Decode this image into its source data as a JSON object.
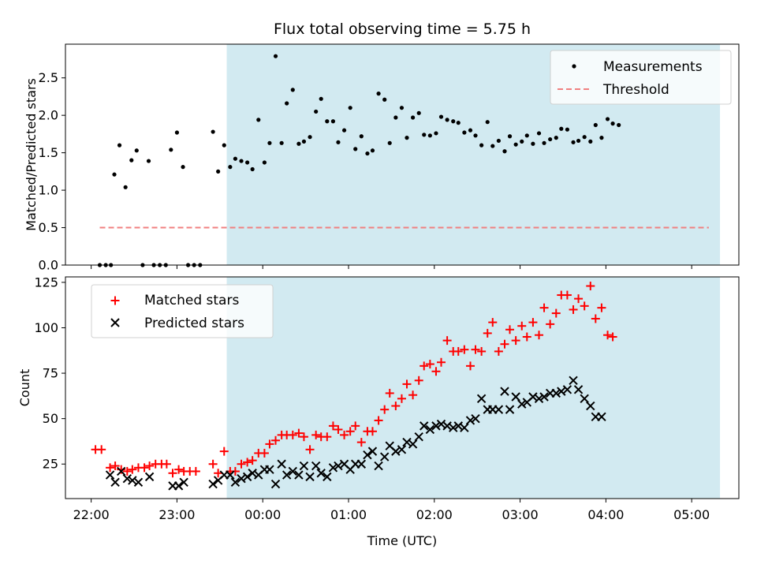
{
  "chart_data": [
    {
      "type": "scatter",
      "title": "Flux total observing time = 5.75 h",
      "xlabel": "",
      "ylabel": "Matched/Predicted stars",
      "ylim": [
        0,
        2.95
      ],
      "yticks": [
        "0.0",
        "0.5",
        "1.0",
        "1.5",
        "2.0",
        "2.5"
      ],
      "ytick_values": [
        0,
        0.5,
        1.0,
        1.5,
        2.0,
        2.5
      ],
      "shaded_span": [
        -0.42,
        5.33
      ],
      "legend": {
        "location": "top-right",
        "entries": [
          "Measurements",
          "Threshold"
        ]
      },
      "threshold": {
        "name": "Threshold",
        "value": 0.5,
        "x_range": [
          -1.9,
          5.2
        ],
        "color": "#f08080"
      },
      "series": [
        {
          "name": "Measurements",
          "color": "#000000",
          "points": [
            [
              -1.9,
              0.0
            ],
            [
              -1.83,
              0.0
            ],
            [
              -1.77,
              0.0
            ],
            [
              -1.73,
              1.21
            ],
            [
              -1.67,
              1.6
            ],
            [
              -1.6,
              1.04
            ],
            [
              -1.53,
              1.4
            ],
            [
              -1.47,
              1.53
            ],
            [
              -1.4,
              0.0
            ],
            [
              -1.33,
              1.39
            ],
            [
              -1.27,
              0.0
            ],
            [
              -1.2,
              0.0
            ],
            [
              -1.13,
              0.0
            ],
            [
              -1.07,
              1.54
            ],
            [
              -1.0,
              1.77
            ],
            [
              -0.93,
              1.31
            ],
            [
              -0.87,
              0.0
            ],
            [
              -0.8,
              0.0
            ],
            [
              -0.73,
              0.0
            ],
            [
              -0.58,
              1.78
            ],
            [
              -0.52,
              1.25
            ],
            [
              -0.45,
              1.6
            ],
            [
              -0.38,
              1.31
            ],
            [
              -0.32,
              1.42
            ],
            [
              -0.25,
              1.39
            ],
            [
              -0.18,
              1.37
            ],
            [
              -0.12,
              1.28
            ],
            [
              -0.05,
              1.94
            ],
            [
              0.02,
              1.37
            ],
            [
              0.08,
              1.63
            ],
            [
              0.15,
              2.79
            ],
            [
              0.22,
              1.63
            ],
            [
              0.28,
              2.16
            ],
            [
              0.35,
              2.34
            ],
            [
              0.42,
              1.62
            ],
            [
              0.48,
              1.65
            ],
            [
              0.55,
              1.71
            ],
            [
              0.62,
              2.05
            ],
            [
              0.68,
              2.22
            ],
            [
              0.75,
              1.92
            ],
            [
              0.82,
              1.92
            ],
            [
              0.88,
              1.64
            ],
            [
              0.95,
              1.8
            ],
            [
              1.02,
              2.1
            ],
            [
              1.08,
              1.55
            ],
            [
              1.15,
              1.72
            ],
            [
              1.22,
              1.49
            ],
            [
              1.28,
              1.53
            ],
            [
              1.35,
              2.29
            ],
            [
              1.42,
              2.21
            ],
            [
              1.48,
              1.63
            ],
            [
              1.55,
              1.97
            ],
            [
              1.62,
              2.1
            ],
            [
              1.68,
              1.7
            ],
            [
              1.75,
              1.97
            ],
            [
              1.82,
              2.03
            ],
            [
              1.88,
              1.74
            ],
            [
              1.95,
              1.73
            ],
            [
              2.02,
              1.76
            ],
            [
              2.08,
              1.98
            ],
            [
              2.15,
              1.94
            ],
            [
              2.22,
              1.92
            ],
            [
              2.28,
              1.9
            ],
            [
              2.35,
              1.77
            ],
            [
              2.42,
              1.8
            ],
            [
              2.48,
              1.73
            ],
            [
              2.55,
              1.6
            ],
            [
              2.62,
              1.91
            ],
            [
              2.68,
              1.59
            ],
            [
              2.75,
              1.66
            ],
            [
              2.82,
              1.52
            ],
            [
              2.88,
              1.72
            ],
            [
              2.95,
              1.61
            ],
            [
              3.02,
              1.65
            ],
            [
              3.08,
              1.73
            ],
            [
              3.15,
              1.62
            ],
            [
              3.22,
              1.76
            ],
            [
              3.28,
              1.63
            ],
            [
              3.35,
              1.68
            ],
            [
              3.42,
              1.7
            ],
            [
              3.48,
              1.82
            ],
            [
              3.55,
              1.81
            ],
            [
              3.62,
              1.64
            ],
            [
              3.68,
              1.66
            ],
            [
              3.75,
              1.71
            ],
            [
              3.82,
              1.65
            ],
            [
              3.88,
              1.87
            ],
            [
              3.95,
              1.7
            ],
            [
              4.02,
              1.95
            ],
            [
              4.08,
              1.89
            ],
            [
              4.15,
              1.87
            ]
          ]
        }
      ]
    },
    {
      "type": "scatter",
      "title": "",
      "xlabel": "Time (UTC)",
      "ylabel": "Count",
      "ylim": [
        6,
        128
      ],
      "yticks": [
        "25",
        "50",
        "75",
        "100",
        "125"
      ],
      "ytick_values": [
        25,
        50,
        75,
        100,
        125
      ],
      "xlim": [
        -2.3,
        5.55
      ],
      "xticks": [
        "22:00",
        "23:00",
        "00:00",
        "01:00",
        "02:00",
        "03:00",
        "04:00",
        "05:00"
      ],
      "xtick_values": [
        -2,
        -1,
        0,
        1,
        2,
        3,
        4,
        5
      ],
      "shaded_span": [
        -0.42,
        5.33
      ],
      "legend": {
        "location": "top-left",
        "entries": [
          "Matched stars",
          "Predicted stars"
        ]
      },
      "series": [
        {
          "name": "Matched stars",
          "marker": "+",
          "color": "#ff0000",
          "points": [
            [
              -1.95,
              33
            ],
            [
              -1.88,
              33
            ],
            [
              -1.78,
              23
            ],
            [
              -1.72,
              24
            ],
            [
              -1.65,
              22
            ],
            [
              -1.58,
              21
            ],
            [
              -1.52,
              22
            ],
            [
              -1.45,
              23
            ],
            [
              -1.38,
              23
            ],
            [
              -1.32,
              24
            ],
            [
              -1.25,
              25
            ],
            [
              -1.18,
              25
            ],
            [
              -1.12,
              25
            ],
            [
              -1.05,
              20
            ],
            [
              -0.98,
              22
            ],
            [
              -0.92,
              21
            ],
            [
              -0.85,
              21
            ],
            [
              -0.78,
              21
            ],
            [
              -0.58,
              25
            ],
            [
              -0.52,
              20
            ],
            [
              -0.45,
              32
            ],
            [
              -0.38,
              21
            ],
            [
              -0.32,
              21
            ],
            [
              -0.25,
              25
            ],
            [
              -0.18,
              26
            ],
            [
              -0.12,
              27
            ],
            [
              -0.05,
              31
            ],
            [
              0.02,
              31
            ],
            [
              0.08,
              36
            ],
            [
              0.15,
              38
            ],
            [
              0.22,
              41
            ],
            [
              0.28,
              41
            ],
            [
              0.35,
              41
            ],
            [
              0.42,
              42
            ],
            [
              0.48,
              40
            ],
            [
              0.55,
              33
            ],
            [
              0.62,
              41
            ],
            [
              0.68,
              40
            ],
            [
              0.75,
              40
            ],
            [
              0.82,
              46
            ],
            [
              0.88,
              44
            ],
            [
              0.95,
              41
            ],
            [
              1.02,
              43
            ],
            [
              1.08,
              46
            ],
            [
              1.15,
              37
            ],
            [
              1.22,
              43
            ],
            [
              1.28,
              43
            ],
            [
              1.35,
              49
            ],
            [
              1.42,
              55
            ],
            [
              1.48,
              64
            ],
            [
              1.55,
              57
            ],
            [
              1.62,
              61
            ],
            [
              1.68,
              69
            ],
            [
              1.75,
              63
            ],
            [
              1.82,
              71
            ],
            [
              1.88,
              79
            ],
            [
              1.95,
              80
            ],
            [
              2.02,
              76
            ],
            [
              2.08,
              81
            ],
            [
              2.15,
              93
            ],
            [
              2.22,
              87
            ],
            [
              2.28,
              87
            ],
            [
              2.35,
              88
            ],
            [
              2.42,
              79
            ],
            [
              2.48,
              88
            ],
            [
              2.55,
              87
            ],
            [
              2.62,
              97
            ],
            [
              2.68,
              103
            ],
            [
              2.75,
              87
            ],
            [
              2.82,
              91
            ],
            [
              2.88,
              99
            ],
            [
              2.95,
              93
            ],
            [
              3.02,
              101
            ],
            [
              3.08,
              95
            ],
            [
              3.15,
              103
            ],
            [
              3.22,
              96
            ],
            [
              3.28,
              111
            ],
            [
              3.35,
              102
            ],
            [
              3.42,
              108
            ],
            [
              3.48,
              118
            ],
            [
              3.55,
              118
            ],
            [
              3.62,
              110
            ],
            [
              3.68,
              116
            ],
            [
              3.75,
              112
            ],
            [
              3.82,
              123
            ],
            [
              3.88,
              105
            ],
            [
              3.95,
              111
            ],
            [
              4.02,
              96
            ],
            [
              4.08,
              95
            ]
          ]
        },
        {
          "name": "Predicted stars",
          "marker": "x",
          "color": "#000000",
          "points": [
            [
              -1.78,
              19
            ],
            [
              -1.72,
              15
            ],
            [
              -1.65,
              21
            ],
            [
              -1.58,
              17
            ],
            [
              -1.52,
              16
            ],
            [
              -1.45,
              15
            ],
            [
              -1.32,
              18
            ],
            [
              -1.05,
              13
            ],
            [
              -0.98,
              13
            ],
            [
              -0.92,
              15
            ],
            [
              -0.58,
              14
            ],
            [
              -0.52,
              16
            ],
            [
              -0.45,
              19
            ],
            [
              -0.38,
              19
            ],
            [
              -0.32,
              15
            ],
            [
              -0.25,
              17
            ],
            [
              -0.18,
              18
            ],
            [
              -0.12,
              20
            ],
            [
              -0.05,
              19
            ],
            [
              0.02,
              22
            ],
            [
              0.08,
              22
            ],
            [
              0.15,
              14
            ],
            [
              0.22,
              25
            ],
            [
              0.28,
              19
            ],
            [
              0.35,
              21
            ],
            [
              0.42,
              19
            ],
            [
              0.48,
              24
            ],
            [
              0.55,
              18
            ],
            [
              0.62,
              24
            ],
            [
              0.68,
              20
            ],
            [
              0.75,
              18
            ],
            [
              0.82,
              23
            ],
            [
              0.88,
              24
            ],
            [
              0.95,
              25
            ],
            [
              1.02,
              22
            ],
            [
              1.08,
              25
            ],
            [
              1.15,
              25
            ],
            [
              1.22,
              30
            ],
            [
              1.28,
              32
            ],
            [
              1.35,
              24
            ],
            [
              1.42,
              29
            ],
            [
              1.48,
              35
            ],
            [
              1.55,
              32
            ],
            [
              1.62,
              33
            ],
            [
              1.68,
              37
            ],
            [
              1.75,
              36
            ],
            [
              1.82,
              40
            ],
            [
              1.88,
              46
            ],
            [
              1.95,
              44
            ],
            [
              2.02,
              46
            ],
            [
              2.08,
              47
            ],
            [
              2.15,
              46
            ],
            [
              2.22,
              45
            ],
            [
              2.28,
              46
            ],
            [
              2.35,
              45
            ],
            [
              2.42,
              49
            ],
            [
              2.48,
              50
            ],
            [
              2.55,
              61
            ],
            [
              2.62,
              55
            ],
            [
              2.68,
              55
            ],
            [
              2.75,
              55
            ],
            [
              2.82,
              65
            ],
            [
              2.88,
              55
            ],
            [
              2.95,
              62
            ],
            [
              3.02,
              58
            ],
            [
              3.08,
              59
            ],
            [
              3.15,
              62
            ],
            [
              3.22,
              61
            ],
            [
              3.28,
              62
            ],
            [
              3.35,
              64
            ],
            [
              3.42,
              64
            ],
            [
              3.48,
              65
            ],
            [
              3.55,
              66
            ],
            [
              3.62,
              71
            ],
            [
              3.68,
              66
            ],
            [
              3.75,
              61
            ],
            [
              3.82,
              57
            ],
            [
              3.88,
              51
            ],
            [
              3.95,
              51
            ]
          ]
        }
      ]
    }
  ]
}
